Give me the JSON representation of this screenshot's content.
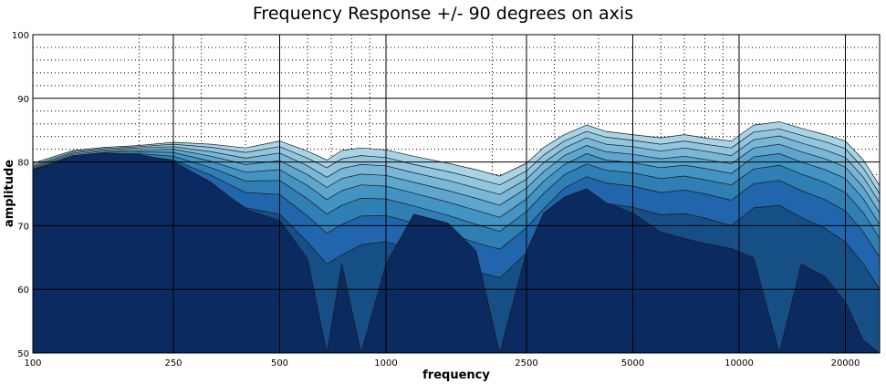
{
  "chart_data": {
    "type": "area",
    "title": "Frequency Response +/- 90 degrees on axis",
    "xlabel": "frequency",
    "ylabel": "amplitude",
    "x_scale": "log",
    "xlim": [
      100,
      25000
    ],
    "ylim": [
      50,
      100
    ],
    "x_ticks": [
      100,
      250,
      500,
      1000,
      2500,
      5000,
      10000,
      20000
    ],
    "x_tick_labels": [
      "100",
      "250",
      "500",
      "1000",
      "2500",
      "5000",
      "10000",
      "20000"
    ],
    "y_ticks": [
      50,
      60,
      70,
      80,
      90,
      100
    ],
    "y_tick_labels": [
      "50",
      "60",
      "70",
      "80",
      "90",
      "100"
    ],
    "grid": true,
    "x": [
      100,
      130,
      160,
      200,
      250,
      320,
      400,
      500,
      600,
      680,
      750,
      850,
      1000,
      1200,
      1500,
      1800,
      2100,
      2500,
      2800,
      3200,
      3700,
      4200,
      5000,
      6000,
      7000,
      8000,
      9500,
      11000,
      13000,
      15000,
      17500,
      20000,
      22500,
      25000
    ],
    "series": [
      {
        "values": [
          79.8,
          81.8,
          82.3,
          82.6,
          83.1,
          82.8,
          82.2,
          83.3,
          81.7,
          80.3,
          81.8,
          82.2,
          81.9,
          80.9,
          79.8,
          78.8,
          77.8,
          79.8,
          82.3,
          84.3,
          85.8,
          84.8,
          84.3,
          83.8,
          84.3,
          83.8,
          83.3,
          85.8,
          86.3,
          85.3,
          84.3,
          83.3,
          80.3,
          76.3
        ]
      },
      {
        "values": [
          79.5,
          81.6,
          82.1,
          82.4,
          82.8,
          82.3,
          81.5,
          82.4,
          80.6,
          79.1,
          80.5,
          81.0,
          80.7,
          79.6,
          78.5,
          77.4,
          76.4,
          78.6,
          81.1,
          83.3,
          84.8,
          83.9,
          83.4,
          82.8,
          83.3,
          82.8,
          82.2,
          84.7,
          85.2,
          84.2,
          83.2,
          82.1,
          79.0,
          75.0
        ]
      },
      {
        "values": [
          79.3,
          81.4,
          81.9,
          82.2,
          82.4,
          81.6,
          80.6,
          81.4,
          79.4,
          77.6,
          79.0,
          79.6,
          79.4,
          78.3,
          77.1,
          75.9,
          74.9,
          77.3,
          79.9,
          82.2,
          83.8,
          82.8,
          82.4,
          81.7,
          82.2,
          81.7,
          81.0,
          83.5,
          84.1,
          83.0,
          81.9,
          80.7,
          77.6,
          73.6
        ]
      },
      {
        "values": [
          79.1,
          81.2,
          81.7,
          81.9,
          82.0,
          80.9,
          79.6,
          80.2,
          78.0,
          76.0,
          77.4,
          78.1,
          77.9,
          76.8,
          75.5,
          74.3,
          73.2,
          75.9,
          78.5,
          81.0,
          82.6,
          81.6,
          81.2,
          80.5,
          80.9,
          80.4,
          79.7,
          82.2,
          82.8,
          81.6,
          80.5,
          79.2,
          76.0,
          72.0
        ]
      },
      {
        "values": [
          78.9,
          81.0,
          81.5,
          81.6,
          81.5,
          80.1,
          78.4,
          78.8,
          76.3,
          74.1,
          75.5,
          76.4,
          76.2,
          75.1,
          73.7,
          72.4,
          71.3,
          74.2,
          77.0,
          79.6,
          81.3,
          80.3,
          79.9,
          79.1,
          79.5,
          79.0,
          78.2,
          80.8,
          81.3,
          80.0,
          78.8,
          77.4,
          74.2,
          70.2
        ]
      },
      {
        "values": [
          78.8,
          80.8,
          81.3,
          81.3,
          80.9,
          79.1,
          77.0,
          77.1,
          74.2,
          71.8,
          73.2,
          74.3,
          74.2,
          73.1,
          71.6,
          70.2,
          69.1,
          72.2,
          75.1,
          78.0,
          79.7,
          78.7,
          78.3,
          77.4,
          77.8,
          77.2,
          76.4,
          78.9,
          79.5,
          78.1,
          76.8,
          75.2,
          72.0,
          68.0
        ]
      },
      {
        "values": [
          78.7,
          80.6,
          81.1,
          81.0,
          80.3,
          77.9,
          75.2,
          74.9,
          71.5,
          68.8,
          70.2,
          71.5,
          71.6,
          70.4,
          68.8,
          67.3,
          66.3,
          69.7,
          72.7,
          75.9,
          77.7,
          76.7,
          76.2,
          75.2,
          75.6,
          75.0,
          74.0,
          76.6,
          77.1,
          75.5,
          74.1,
          72.3,
          69.0,
          65.0
        ]
      },
      {
        "values": [
          78.6,
          80.4,
          80.9,
          80.7,
          79.6,
          76.4,
          72.8,
          71.8,
          67.4,
          64.0,
          65.4,
          67.0,
          67.5,
          66.2,
          64.4,
          62.8,
          61.8,
          65.7,
          69.0,
          72.6,
          74.6,
          73.5,
          72.9,
          71.7,
          71.9,
          71.2,
          70.0,
          72.8,
          73.2,
          71.3,
          69.6,
          67.4,
          64.0,
          60.0
        ]
      },
      {
        "values": [
          78.6,
          81.0,
          81.4,
          81.2,
          80.1,
          76.8,
          72.6,
          70.8,
          64.8,
          50.0,
          64.0,
          50.0,
          64.0,
          71.8,
          70.4,
          66.0,
          50.0,
          66.0,
          72.0,
          74.5,
          75.8,
          73.6,
          72.0,
          69.0,
          68.0,
          67.2,
          66.4,
          65.0,
          50.0,
          64.0,
          62.0,
          58.0,
          52.0,
          50.0
        ]
      }
    ],
    "colors": [
      "#a9d4e8",
      "#92c5de",
      "#7ab6d6",
      "#5ea6cd",
      "#4393c3",
      "#2f7fb4",
      "#2166ac",
      "#164f86",
      "#0b2a60"
    ],
    "edge_color": "#1a1a1a",
    "background": "#ffffff"
  }
}
